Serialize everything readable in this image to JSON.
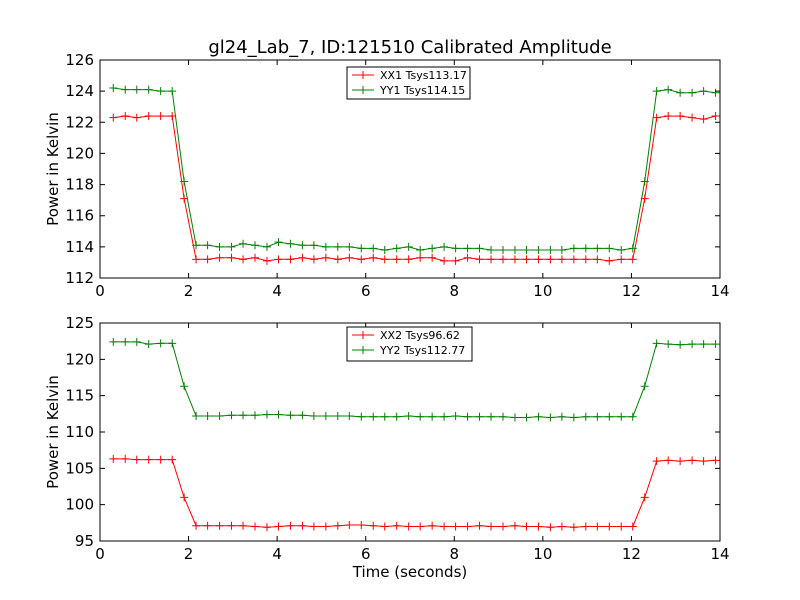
{
  "title": "gl24_Lab_7, ID:121510 Calibrated Amplitude",
  "chart_data": [
    {
      "type": "line",
      "xlabel": "",
      "ylabel": "Power in Kelvin",
      "xlim": [
        0,
        14
      ],
      "ylim": [
        112,
        126
      ],
      "xticks": [
        "0",
        "2",
        "4",
        "6",
        "8",
        "10",
        "12",
        "14"
      ],
      "yticks": [
        "112",
        "114",
        "116",
        "118",
        "120",
        "122",
        "124",
        "126"
      ],
      "legend_position": "top-center",
      "grid": false,
      "x": [
        0.3,
        0.57,
        0.83,
        1.1,
        1.37,
        1.63,
        1.9,
        2.17,
        2.43,
        2.7,
        2.97,
        3.23,
        3.5,
        3.77,
        4.03,
        4.3,
        4.57,
        4.83,
        5.1,
        5.37,
        5.63,
        5.9,
        6.17,
        6.43,
        6.7,
        6.97,
        7.23,
        7.5,
        7.77,
        8.03,
        8.3,
        8.57,
        8.83,
        9.1,
        9.37,
        9.63,
        9.9,
        10.17,
        10.43,
        10.7,
        10.97,
        11.23,
        11.5,
        11.77,
        12.03,
        12.3,
        12.57,
        12.83,
        13.1,
        13.37,
        13.63,
        13.9
      ],
      "series": [
        {
          "name": "XX1 Tsys113.17",
          "color": "#ff0000",
          "values": [
            122.3,
            122.4,
            122.3,
            122.4,
            122.4,
            122.4,
            117.1,
            113.2,
            113.2,
            113.3,
            113.3,
            113.2,
            113.3,
            113.1,
            113.2,
            113.2,
            113.3,
            113.2,
            113.3,
            113.2,
            113.3,
            113.2,
            113.3,
            113.2,
            113.2,
            113.2,
            113.3,
            113.3,
            113.1,
            113.1,
            113.3,
            113.2,
            113.2,
            113.2,
            113.2,
            113.2,
            113.2,
            113.2,
            113.2,
            113.2,
            113.2,
            113.2,
            113.1,
            113.2,
            113.2,
            117.1,
            122.3,
            122.4,
            122.4,
            122.3,
            122.2,
            122.4
          ]
        },
        {
          "name": "YY1 Tsys114.15",
          "color": "#008000",
          "values": [
            124.2,
            124.1,
            124.1,
            124.1,
            124.0,
            124.0,
            118.2,
            114.1,
            114.1,
            114.0,
            114.0,
            114.2,
            114.1,
            114.0,
            114.3,
            114.2,
            114.1,
            114.1,
            114.0,
            114.0,
            114.0,
            113.9,
            113.9,
            113.8,
            113.9,
            114.0,
            113.8,
            113.9,
            114.0,
            113.9,
            113.9,
            113.9,
            113.8,
            113.8,
            113.8,
            113.8,
            113.8,
            113.8,
            113.8,
            113.9,
            113.9,
            113.9,
            113.9,
            113.8,
            113.9,
            118.2,
            124.0,
            124.1,
            123.9,
            123.9,
            124.0,
            123.9
          ]
        }
      ]
    },
    {
      "type": "line",
      "xlabel": "Time (seconds)",
      "ylabel": "Power in Kelvin",
      "xlim": [
        0,
        14
      ],
      "ylim": [
        95,
        125
      ],
      "xticks": [
        "0",
        "2",
        "4",
        "6",
        "8",
        "10",
        "12",
        "14"
      ],
      "yticks": [
        "95",
        "100",
        "105",
        "110",
        "115",
        "120",
        "125"
      ],
      "legend_position": "top-center",
      "grid": false,
      "x": [
        0.3,
        0.57,
        0.83,
        1.1,
        1.37,
        1.63,
        1.9,
        2.17,
        2.43,
        2.7,
        2.97,
        3.23,
        3.5,
        3.77,
        4.03,
        4.3,
        4.57,
        4.83,
        5.1,
        5.37,
        5.63,
        5.9,
        6.17,
        6.43,
        6.7,
        6.97,
        7.23,
        7.5,
        7.77,
        8.03,
        8.3,
        8.57,
        8.83,
        9.1,
        9.37,
        9.63,
        9.9,
        10.17,
        10.43,
        10.7,
        10.97,
        11.23,
        11.5,
        11.77,
        12.03,
        12.3,
        12.57,
        12.83,
        13.1,
        13.37,
        13.63,
        13.9
      ],
      "series": [
        {
          "name": "XX2 Tsys96.62",
          "color": "#ff0000",
          "values": [
            106.3,
            106.3,
            106.2,
            106.2,
            106.2,
            106.2,
            101.0,
            97.1,
            97.1,
            97.1,
            97.1,
            97.1,
            97.0,
            96.9,
            97.0,
            97.1,
            97.1,
            97.0,
            97.0,
            97.1,
            97.2,
            97.2,
            97.1,
            97.0,
            97.1,
            97.0,
            97.0,
            97.1,
            97.0,
            97.0,
            97.0,
            97.1,
            97.0,
            97.0,
            97.1,
            97.0,
            97.0,
            96.9,
            97.0,
            96.9,
            97.0,
            97.0,
            97.0,
            97.0,
            97.0,
            101.0,
            106.0,
            106.1,
            106.0,
            106.1,
            106.0,
            106.1
          ]
        },
        {
          "name": "YY2 Tsys112.77",
          "color": "#008000",
          "values": [
            122.4,
            122.4,
            122.4,
            122.1,
            122.2,
            122.2,
            116.3,
            112.2,
            112.2,
            112.2,
            112.3,
            112.3,
            112.3,
            112.4,
            112.4,
            112.3,
            112.3,
            112.2,
            112.2,
            112.2,
            112.2,
            112.1,
            112.1,
            112.1,
            112.1,
            112.2,
            112.1,
            112.1,
            112.1,
            112.2,
            112.1,
            112.1,
            112.1,
            112.1,
            112.0,
            112.0,
            112.1,
            112.0,
            112.1,
            112.0,
            112.1,
            112.1,
            112.1,
            112.1,
            112.1,
            116.3,
            122.2,
            122.1,
            122.0,
            122.1,
            122.1,
            122.1
          ]
        }
      ]
    }
  ]
}
